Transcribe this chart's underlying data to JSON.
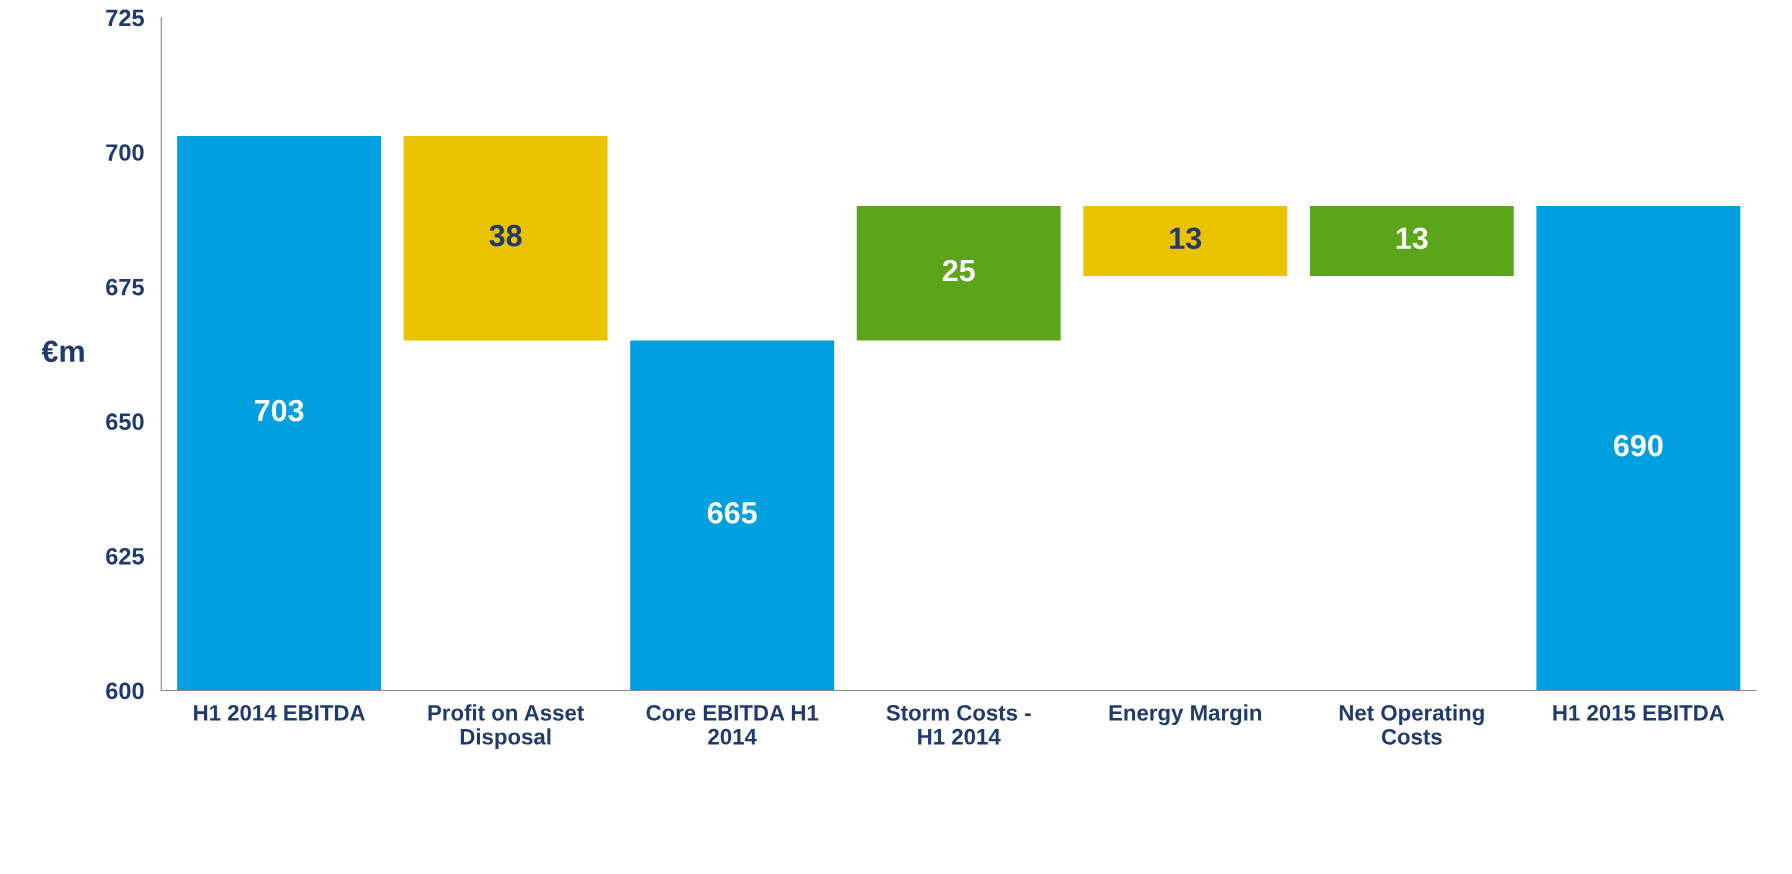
{
  "chart_data": {
    "type": "bar",
    "categories": [
      "H1 2014 EBITDA",
      "Profit on Asset\nDisposal",
      "Core EBITDA H1\n2014",
      "Storm Costs -\nH1 2014",
      "Energy Margin",
      "Net Operating\nCosts",
      "H1 2015 EBITDA"
    ],
    "values": [
      703,
      38,
      665,
      25,
      13,
      13,
      690
    ],
    "base": [
      null,
      665,
      null,
      665,
      677,
      677,
      null
    ],
    "colors": [
      "#009fe0",
      "#ebc200",
      "#009fe0",
      "#5aa51a",
      "#ebc200",
      "#5aa51a",
      "#009fe0"
    ],
    "ylim": [
      600,
      725
    ],
    "yticks": [
      600,
      625,
      650,
      675,
      700,
      725
    ],
    "ylabel": "€m",
    "data_labels": true,
    "grid": false,
    "legend": false
  }
}
